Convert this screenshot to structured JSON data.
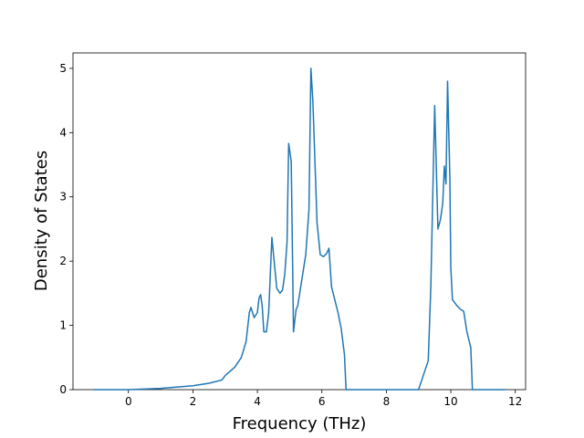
{
  "chart_data": {
    "type": "line",
    "x_label": "Frequency (THz)",
    "y_label": "Density of States",
    "x": [
      -1.08,
      0,
      1,
      2,
      2.5,
      2.9,
      3.0,
      3.3,
      3.5,
      3.65,
      3.75,
      3.8,
      3.9,
      4.0,
      4.05,
      4.1,
      4.15,
      4.2,
      4.28,
      4.35,
      4.45,
      4.5,
      4.6,
      4.7,
      4.78,
      4.85,
      4.92,
      4.97,
      5.05,
      5.12,
      5.2,
      5.25,
      5.5,
      5.6,
      5.66,
      5.72,
      5.85,
      5.95,
      6.05,
      6.15,
      6.22,
      6.3,
      6.5,
      6.6,
      6.7,
      6.75,
      9.0,
      9.1,
      9.3,
      9.38,
      9.5,
      9.6,
      9.68,
      9.75,
      9.8,
      9.85,
      9.9,
      9.97,
      10.0,
      10.05,
      10.2,
      10.3,
      10.4,
      10.5,
      10.62,
      10.67,
      11.68
    ],
    "series": [
      {
        "color": "#1f77b4",
        "values": [
          0,
          0,
          0.02,
          0.06,
          0.1,
          0.15,
          0.22,
          0.35,
          0.5,
          0.75,
          1.2,
          1.28,
          1.12,
          1.2,
          1.42,
          1.48,
          1.3,
          0.9,
          0.9,
          1.2,
          2.37,
          2.1,
          1.58,
          1.5,
          1.55,
          1.8,
          2.3,
          3.83,
          3.55,
          0.9,
          1.25,
          1.3,
          2.1,
          2.8,
          5.0,
          4.5,
          2.6,
          2.1,
          2.07,
          2.12,
          2.2,
          1.6,
          1.2,
          0.95,
          0.55,
          0,
          0,
          0.15,
          0.45,
          1.6,
          4.42,
          2.5,
          2.65,
          2.9,
          3.48,
          3.2,
          4.8,
          3.3,
          1.9,
          1.4,
          1.3,
          1.25,
          1.22,
          0.9,
          0.65,
          0,
          0
        ]
      }
    ],
    "xlim": [
      -1.72,
      12.32
    ],
    "ylim": [
      0,
      5.24
    ],
    "xticks": [
      0,
      2,
      4,
      6,
      8,
      10,
      12
    ],
    "yticks": [
      0,
      1,
      2,
      3,
      4,
      5
    ]
  }
}
